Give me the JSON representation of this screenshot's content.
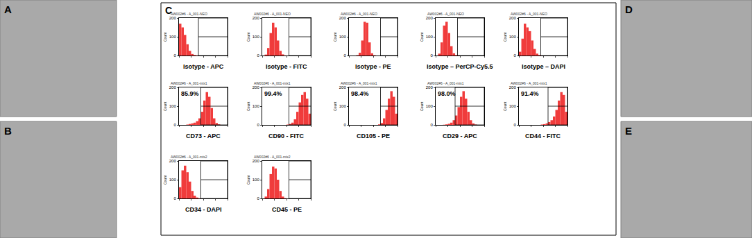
{
  "panels": [
    {
      "label": "A"
    },
    {
      "label": "B"
    },
    {
      "label": "D"
    },
    {
      "label": "E"
    }
  ],
  "panel_c": "C",
  "chart_data": [
    {
      "type": "histogram",
      "title": "Isotype - APC",
      "subtitle": "AW002#6 - A_001-NEO",
      "ylabel": "Count",
      "bins": [
        0,
        5,
        10,
        15,
        20,
        25,
        30,
        35,
        40,
        45,
        50,
        55,
        60,
        65,
        70,
        75,
        80,
        85,
        90,
        95,
        100
      ],
      "counts": [
        170,
        150,
        110,
        60,
        25,
        8,
        3,
        1,
        0,
        0,
        0,
        0,
        0,
        0,
        0,
        0,
        0,
        0,
        0,
        0
      ],
      "color": "#f03c3c",
      "xlim": [
        0,
        100
      ],
      "ylim": [
        0,
        200
      ],
      "xticks": [
        0,
        25,
        50,
        75,
        100
      ],
      "yticks": [
        0,
        100,
        200
      ],
      "tick_labels": "y",
      "gate": [
        40,
        100
      ],
      "gate_level": 100
    },
    {
      "type": "histogram",
      "title": "Isotype - FITC",
      "subtitle": "AW002#6 - A_001-NEO",
      "ylabel": "Count",
      "bins": [
        0,
        5,
        10,
        15,
        20,
        25,
        30,
        35,
        40,
        45,
        50,
        55,
        60,
        65,
        70,
        75,
        80,
        85,
        90,
        95,
        100
      ],
      "counts": [
        0,
        5,
        40,
        120,
        175,
        150,
        80,
        25,
        6,
        1,
        0,
        0,
        0,
        0,
        0,
        0,
        0,
        0,
        0,
        0
      ],
      "color": "#f03c3c",
      "xlim": [
        0,
        100
      ],
      "ylim": [
        0,
        200
      ],
      "xticks": [
        0,
        25,
        50,
        75,
        100
      ],
      "yticks": [
        0,
        100,
        200
      ],
      "tick_labels": "y",
      "gate": [
        55,
        100
      ],
      "gate_level": 100
    },
    {
      "type": "histogram",
      "title": "Isotype - PE",
      "subtitle": "AW002#6 - A_001-NEO",
      "ylabel": "Count",
      "bins": [
        0,
        5,
        10,
        15,
        20,
        25,
        30,
        35,
        40,
        45,
        50,
        55,
        60,
        65,
        70,
        75,
        80,
        85,
        90,
        95,
        100
      ],
      "counts": [
        0,
        0,
        0,
        2,
        15,
        80,
        180,
        175,
        70,
        12,
        2,
        0,
        0,
        0,
        0,
        0,
        0,
        0,
        0,
        0
      ],
      "color": "#f03c3c",
      "xlim": [
        0,
        100
      ],
      "ylim": [
        0,
        200
      ],
      "xticks": [
        0,
        25,
        50,
        75,
        100
      ],
      "yticks": [
        0,
        100,
        200
      ],
      "tick_labels": "y",
      "gate": [
        65,
        100
      ],
      "gate_level": 100
    },
    {
      "type": "histogram",
      "title": "Isotype – PerCP-Cy5.5",
      "subtitle": "AW002#6 - A_001-NEO",
      "ylabel": "Count",
      "bins": [
        0,
        5,
        10,
        15,
        20,
        25,
        30,
        35,
        40,
        45,
        50,
        55,
        60,
        65,
        70,
        75,
        80,
        85,
        90,
        95,
        100
      ],
      "counts": [
        0,
        10,
        70,
        160,
        180,
        120,
        50,
        12,
        3,
        1,
        0,
        0,
        0,
        0,
        0,
        0,
        0,
        0,
        0,
        0
      ],
      "color": "#f03c3c",
      "xlim": [
        0,
        100
      ],
      "ylim": [
        0,
        200
      ],
      "xticks": [
        0,
        25,
        50,
        75,
        100
      ],
      "yticks": [
        0,
        100,
        200
      ],
      "tick_labels": "y",
      "gate": [
        45,
        100
      ],
      "gate_level": 100
    },
    {
      "type": "histogram",
      "title": "Isotype – DAPI",
      "subtitle": "AW002#6 - A_001-NEO",
      "ylabel": "Count",
      "bins": [
        0,
        5,
        10,
        15,
        20,
        25,
        30,
        35,
        40,
        45,
        50,
        55,
        60,
        65,
        70,
        75,
        80,
        85,
        90,
        95,
        100
      ],
      "counts": [
        20,
        90,
        170,
        150,
        130,
        80,
        35,
        10,
        3,
        0,
        0,
        0,
        0,
        0,
        0,
        0,
        0,
        0,
        0,
        0
      ],
      "color": "#f03c3c",
      "xlim": [
        0,
        100
      ],
      "ylim": [
        0,
        200
      ],
      "xticks": [
        0,
        25,
        50,
        75,
        100
      ],
      "yticks": [
        0,
        100,
        200
      ],
      "tick_labels": "y",
      "gate": [
        45,
        100
      ],
      "gate_level": 100
    },
    {
      "type": "histogram",
      "title": "CD73 - APC",
      "subtitle": "AW002#6 - A_001-mix1",
      "ylabel": "Count",
      "bins": [
        0,
        5,
        10,
        15,
        20,
        25,
        30,
        35,
        40,
        45,
        50,
        55,
        60,
        65,
        70,
        75,
        80,
        85,
        90,
        95,
        100
      ],
      "counts": [
        0,
        0,
        0,
        2,
        5,
        8,
        12,
        20,
        35,
        70,
        130,
        175,
        150,
        90,
        35,
        10,
        3,
        0,
        0,
        0
      ],
      "color": "#f03c3c",
      "xlim": [
        0,
        100
      ],
      "ylim": [
        0,
        200
      ],
      "xticks": [
        0,
        25,
        50,
        75,
        100
      ],
      "yticks": [
        0,
        100,
        200
      ],
      "tick_labels": "y",
      "gate": [
        45,
        100
      ],
      "gate_level": 100,
      "annotations": [
        "85.9%"
      ]
    },
    {
      "type": "histogram",
      "title": "CD90 - FITC",
      "subtitle": "AW002#6 - A_001-mix1",
      "ylabel": "Count",
      "bins": [
        0,
        5,
        10,
        15,
        20,
        25,
        30,
        35,
        40,
        45,
        50,
        55,
        60,
        65,
        70,
        75,
        80,
        85,
        90,
        95,
        100
      ],
      "counts": [
        0,
        0,
        0,
        0,
        0,
        0,
        0,
        0,
        0,
        0,
        2,
        5,
        12,
        30,
        70,
        120,
        160,
        175,
        140,
        60
      ],
      "color": "#f03c3c",
      "xlim": [
        0,
        100
      ],
      "ylim": [
        0,
        200
      ],
      "xticks": [
        0,
        25,
        50,
        75,
        100
      ],
      "yticks": [
        0,
        100,
        200
      ],
      "tick_labels": "y",
      "gate": [
        55,
        100
      ],
      "gate_level": 100,
      "annotations": [
        "99.4%"
      ]
    },
    {
      "type": "histogram",
      "title": "CD105 - PE",
      "subtitle": "AW002#6 - A_001-mix1",
      "ylabel": "Count",
      "bins": [
        0,
        5,
        10,
        15,
        20,
        25,
        30,
        35,
        40,
        45,
        50,
        55,
        60,
        65,
        70,
        75,
        80,
        85,
        90,
        95,
        100
      ],
      "counts": [
        0,
        0,
        0,
        0,
        0,
        0,
        0,
        0,
        0,
        0,
        0,
        0,
        3,
        10,
        35,
        80,
        140,
        180,
        150,
        60
      ],
      "color": "#f03c3c",
      "xlim": [
        0,
        100
      ],
      "ylim": [
        0,
        200
      ],
      "xticks": [
        0,
        25,
        50,
        75,
        100
      ],
      "yticks": [
        0,
        100,
        200
      ],
      "tick_labels": "y",
      "gate": [
        65,
        100
      ],
      "gate_level": 100,
      "annotations": [
        "98.4%"
      ]
    },
    {
      "type": "histogram",
      "title": "CD29 - APC",
      "subtitle": "AW002#6 - A_001-mix1",
      "ylabel": "Count",
      "bins": [
        0,
        5,
        10,
        15,
        20,
        25,
        30,
        35,
        40,
        45,
        50,
        55,
        60,
        65,
        70,
        75,
        80,
        85,
        90,
        95,
        100
      ],
      "counts": [
        0,
        0,
        0,
        1,
        3,
        6,
        12,
        25,
        50,
        95,
        150,
        180,
        140,
        70,
        25,
        8,
        2,
        0,
        0,
        0
      ],
      "color": "#f03c3c",
      "xlim": [
        0,
        100
      ],
      "ylim": [
        0,
        200
      ],
      "xticks": [
        0,
        25,
        50,
        75,
        100
      ],
      "yticks": [
        0,
        100,
        200
      ],
      "tick_labels": "y",
      "gate": [
        40,
        100
      ],
      "gate_level": 100,
      "annotations": [
        "98.0%"
      ]
    },
    {
      "type": "histogram",
      "title": "CD44 - FITC",
      "subtitle": "AW002#6 - A_001-mix1",
      "ylabel": "Count",
      "bins": [
        0,
        5,
        10,
        15,
        20,
        25,
        30,
        35,
        40,
        45,
        50,
        55,
        60,
        65,
        70,
        75,
        80,
        85,
        90,
        95,
        100
      ],
      "counts": [
        0,
        0,
        0,
        0,
        0,
        0,
        0,
        0,
        0,
        2,
        4,
        8,
        15,
        25,
        45,
        80,
        130,
        175,
        160,
        70
      ],
      "color": "#f03c3c",
      "xlim": [
        0,
        100
      ],
      "ylim": [
        0,
        200
      ],
      "xticks": [
        0,
        25,
        50,
        75,
        100
      ],
      "yticks": [
        0,
        100,
        200
      ],
      "tick_labels": "y",
      "gate": [
        60,
        100
      ],
      "gate_level": 100,
      "annotations": [
        "91.4%"
      ]
    },
    {
      "type": "histogram",
      "title": "CD34 - DAPI",
      "subtitle": "AW002#6 - A_001-mix2",
      "ylabel": "Count",
      "bins": [
        0,
        5,
        10,
        15,
        20,
        25,
        30,
        35,
        40,
        45,
        50,
        55,
        60,
        65,
        70,
        75,
        80,
        85,
        90,
        95,
        100
      ],
      "counts": [
        60,
        150,
        175,
        140,
        90,
        40,
        15,
        5,
        1,
        0,
        0,
        0,
        0,
        0,
        0,
        0,
        0,
        0,
        0,
        0
      ],
      "color": "#f03c3c",
      "xlim": [
        0,
        100
      ],
      "ylim": [
        0,
        200
      ],
      "xticks": [
        0,
        25,
        50,
        75,
        100
      ],
      "yticks": [
        0,
        100,
        200
      ],
      "tick_labels": "y",
      "gate": [
        45,
        100
      ],
      "gate_level": 100
    },
    {
      "type": "histogram",
      "title": "CD45 - PE",
      "subtitle": "AW002#6 - A_001-mix2",
      "ylabel": "Count",
      "bins": [
        0,
        5,
        10,
        15,
        20,
        25,
        30,
        35,
        40,
        45,
        50,
        55,
        60,
        65,
        70,
        75,
        80,
        85,
        90,
        95,
        100
      ],
      "counts": [
        0,
        10,
        50,
        130,
        170,
        160,
        100,
        40,
        10,
        2,
        0,
        0,
        0,
        0,
        0,
        0,
        0,
        0,
        0,
        0
      ],
      "color": "#f03c3c",
      "xlim": [
        0,
        100
      ],
      "ylim": [
        0,
        200
      ],
      "xticks": [
        0,
        25,
        50,
        75,
        100
      ],
      "yticks": [
        0,
        100,
        200
      ],
      "tick_labels": "y",
      "gate": [
        55,
        100
      ],
      "gate_level": 100
    }
  ]
}
